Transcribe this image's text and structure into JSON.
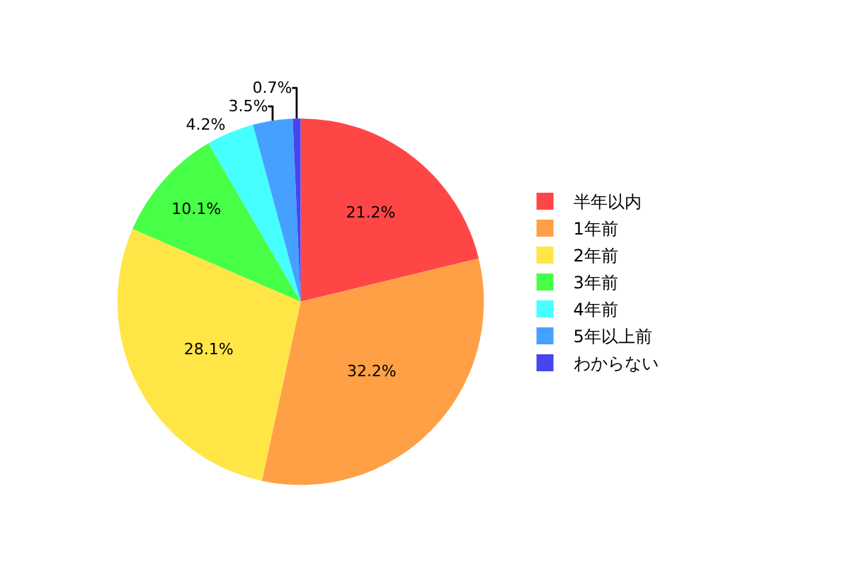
{
  "chart_data": {
    "type": "pie",
    "categories": [
      "半年以内",
      "1年前",
      "2年前",
      "3年前",
      "4年前",
      "5年以上前",
      "わからない"
    ],
    "values": [
      21.2,
      32.2,
      28.1,
      10.1,
      4.2,
      3.5,
      0.7
    ],
    "value_labels": [
      "21.2%",
      "32.2%",
      "28.1%",
      "10.1%",
      "4.2%",
      "3.5%",
      "0.7%"
    ],
    "colors": [
      "#ff4646",
      "#ffa046",
      "#ffe646",
      "#46ff46",
      "#46ffff",
      "#46a0ff",
      "#4646f0"
    ],
    "legend": "right"
  }
}
